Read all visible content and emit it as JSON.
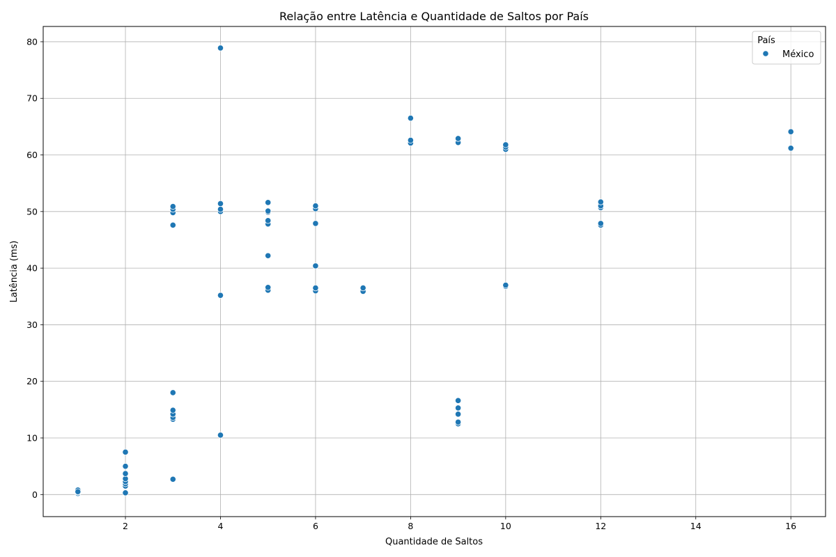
{
  "chart_data": {
    "type": "scatter",
    "title": "Relação entre Latência e Quantidade de Saltos por País",
    "xlabel": "Quantidade de Saltos",
    "ylabel": "Latência (ms)",
    "xlim": [
      0.27,
      16.73
    ],
    "ylim": [
      -3.9,
      82.7
    ],
    "xticks": [
      2,
      4,
      6,
      8,
      10,
      12,
      14,
      16
    ],
    "yticks": [
      0,
      10,
      20,
      30,
      40,
      50,
      60,
      70,
      80
    ],
    "grid": true,
    "legend": {
      "title": "País",
      "placement": "top-right"
    },
    "series": [
      {
        "name": "México",
        "color": "#1f77b4",
        "points": [
          [
            1,
            0.2
          ],
          [
            1,
            0.4
          ],
          [
            1,
            0.6
          ],
          [
            1,
            0.8
          ],
          [
            1,
            0.5
          ],
          [
            2,
            0.3
          ],
          [
            2,
            1.5
          ],
          [
            2,
            1.9
          ],
          [
            2,
            2.3
          ],
          [
            2,
            2.8
          ],
          [
            2,
            3.7
          ],
          [
            2,
            5.0
          ],
          [
            2,
            7.5
          ],
          [
            3,
            2.7
          ],
          [
            3,
            13.3
          ],
          [
            3,
            13.6
          ],
          [
            3,
            14.2
          ],
          [
            3,
            14.9
          ],
          [
            3,
            18.0
          ],
          [
            3,
            47.6
          ],
          [
            3,
            49.8
          ],
          [
            3,
            50.4
          ],
          [
            3,
            50.9
          ],
          [
            4,
            10.5
          ],
          [
            4,
            35.2
          ],
          [
            4,
            50.0
          ],
          [
            4,
            50.4
          ],
          [
            4,
            51.4
          ],
          [
            4,
            78.9
          ],
          [
            5,
            36.1
          ],
          [
            5,
            36.6
          ],
          [
            5,
            42.2
          ],
          [
            5,
            47.8
          ],
          [
            5,
            48.4
          ],
          [
            5,
            49.9
          ],
          [
            5,
            50.1
          ],
          [
            5,
            51.6
          ],
          [
            6,
            36.0
          ],
          [
            6,
            36.5
          ],
          [
            6,
            40.4
          ],
          [
            6,
            47.9
          ],
          [
            6,
            50.5
          ],
          [
            6,
            51.0
          ],
          [
            7,
            35.9
          ],
          [
            7,
            36.5
          ],
          [
            8,
            62.1
          ],
          [
            8,
            62.6
          ],
          [
            8,
            66.5
          ],
          [
            9,
            12.5
          ],
          [
            9,
            12.8
          ],
          [
            9,
            14.2
          ],
          [
            9,
            15.3
          ],
          [
            9,
            16.6
          ],
          [
            9,
            62.2
          ],
          [
            9,
            62.9
          ],
          [
            10,
            36.8
          ],
          [
            10,
            37.0
          ],
          [
            10,
            61.0
          ],
          [
            10,
            61.4
          ],
          [
            10,
            61.8
          ],
          [
            12,
            47.6
          ],
          [
            12,
            47.9
          ],
          [
            12,
            50.7
          ],
          [
            12,
            51.0
          ],
          [
            12,
            51.7
          ],
          [
            16,
            61.2
          ],
          [
            16,
            64.1
          ]
        ]
      }
    ]
  }
}
